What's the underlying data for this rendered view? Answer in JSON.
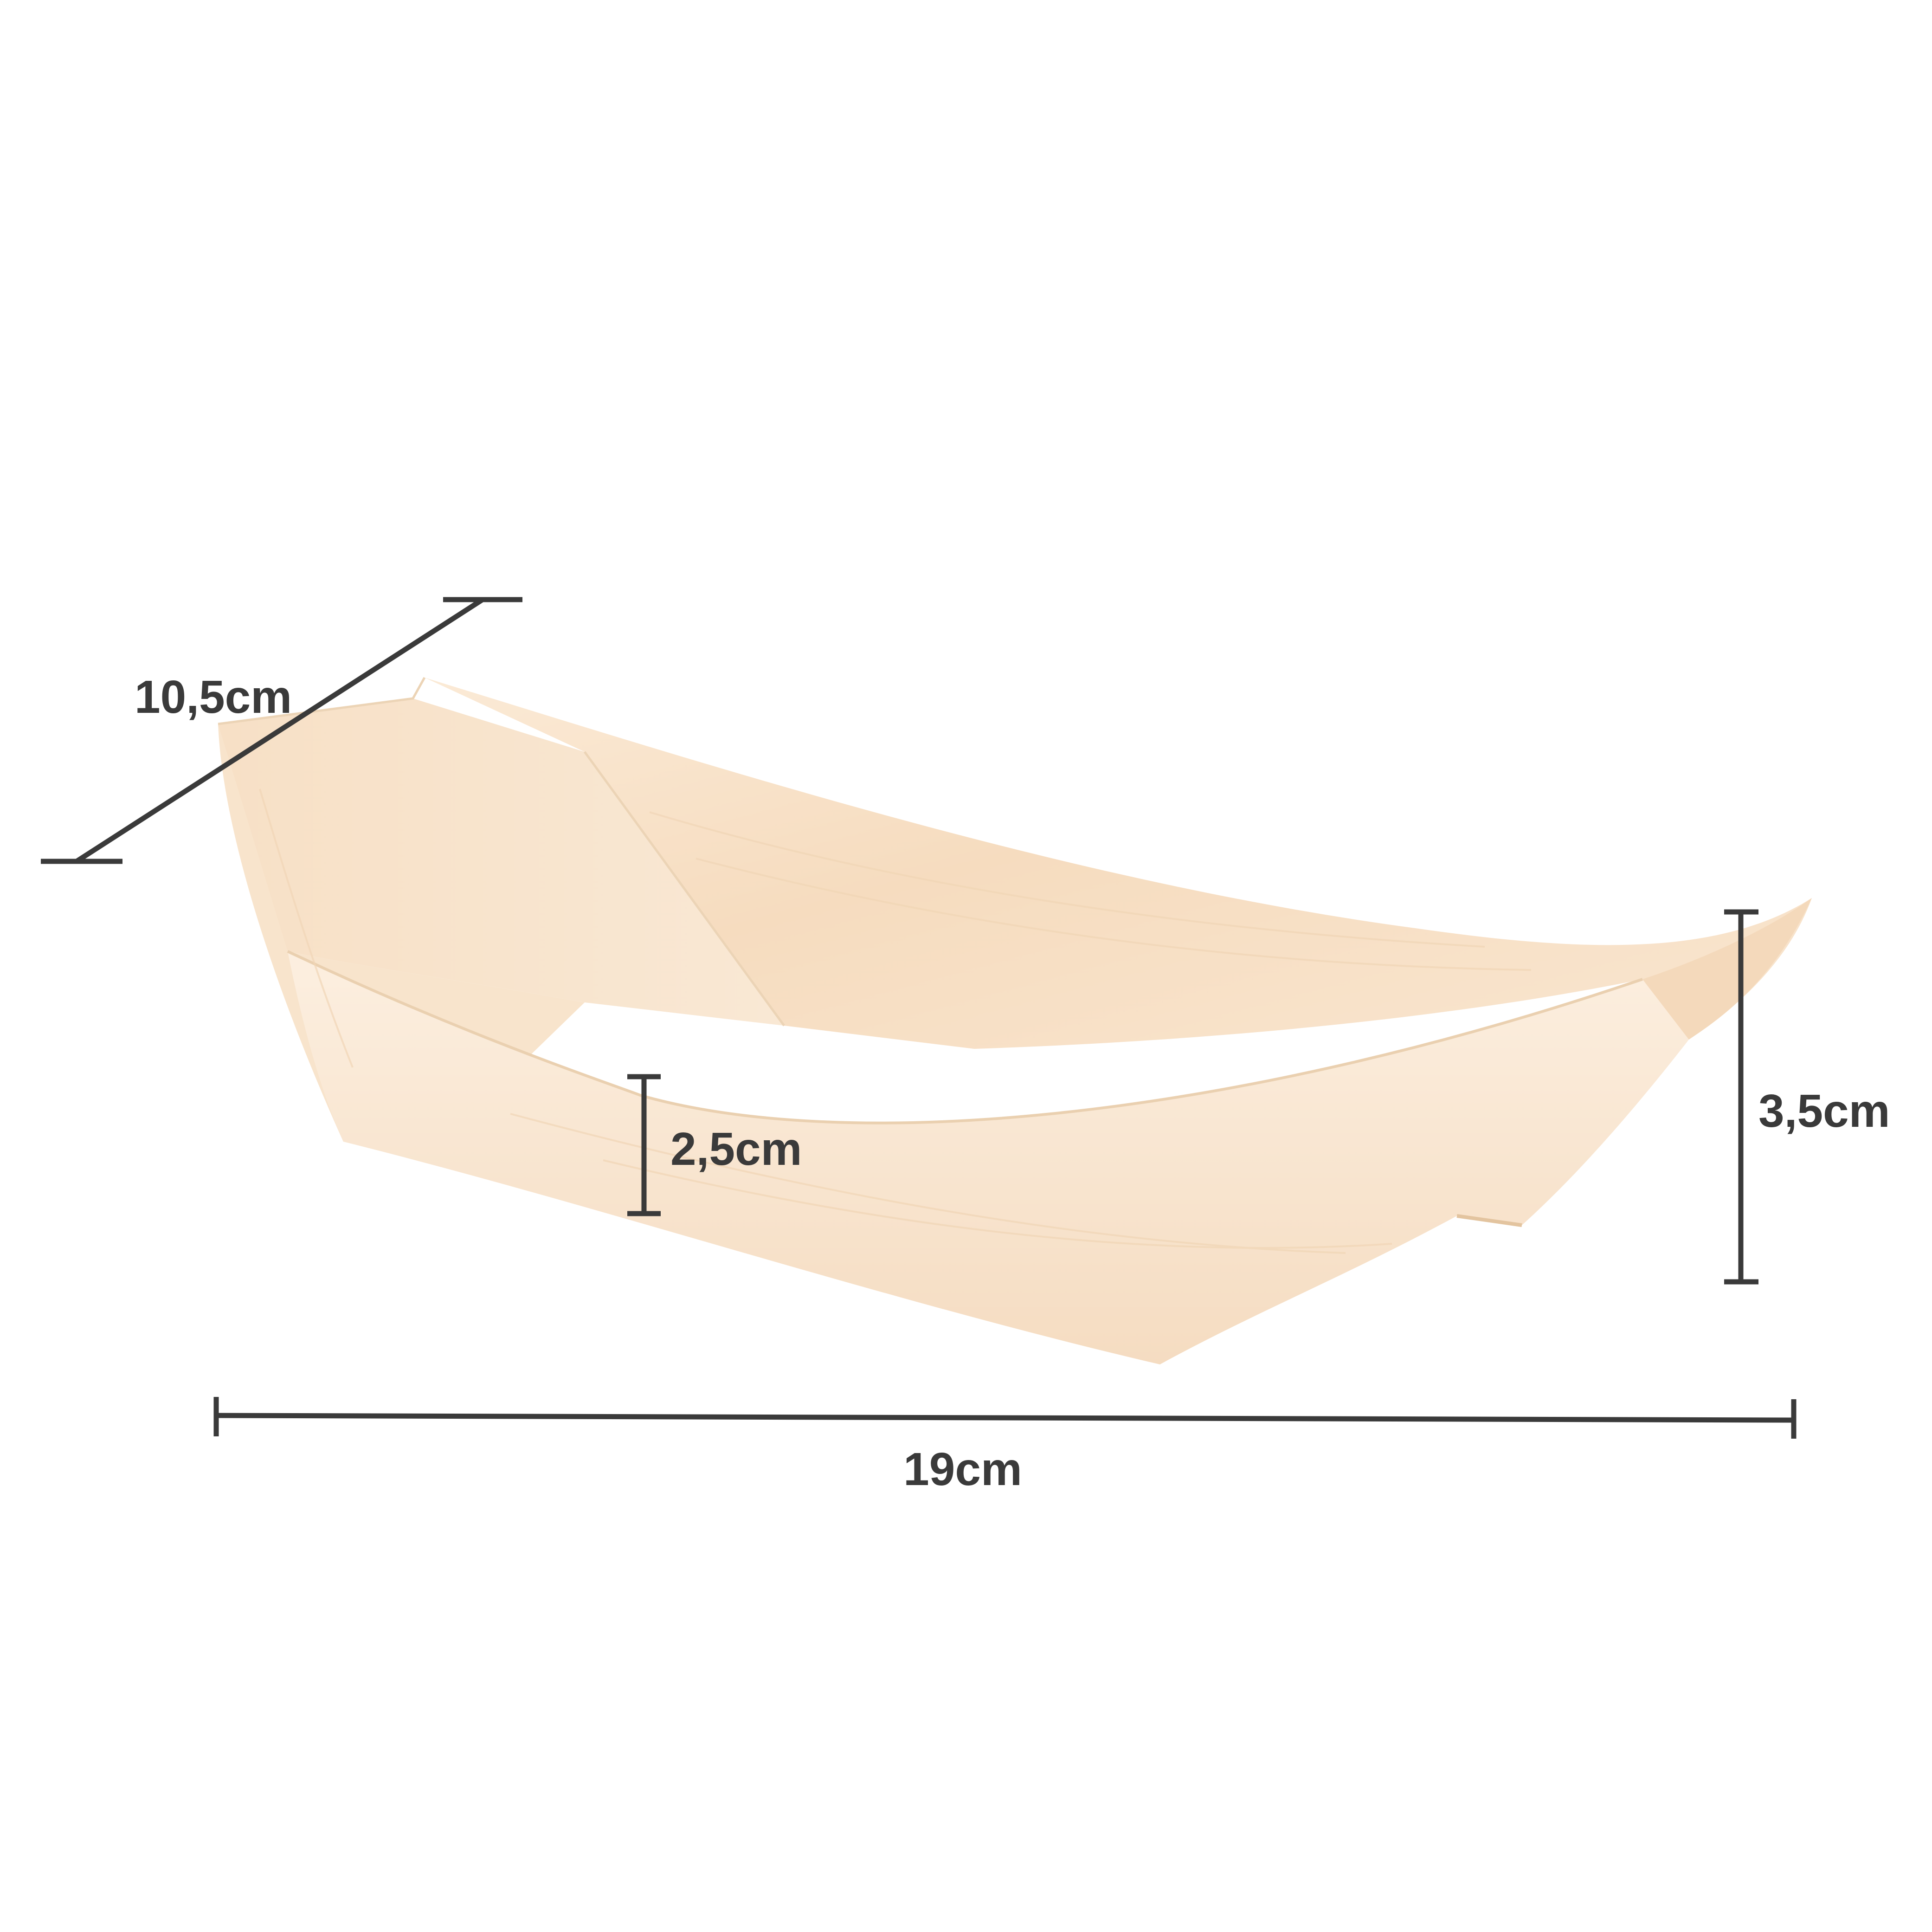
{
  "product": {
    "name": "wooden-boat-tray",
    "wood_color": "#f7e2c8",
    "shadow_color": "#e8c9a3",
    "highlight_color": "#fbefe0"
  },
  "dimensions": {
    "width_label": "10,5cm",
    "depth_label": "2,5cm",
    "height_label": "3,5cm",
    "length_label": "19cm",
    "line_color": "#3a3a3a"
  }
}
